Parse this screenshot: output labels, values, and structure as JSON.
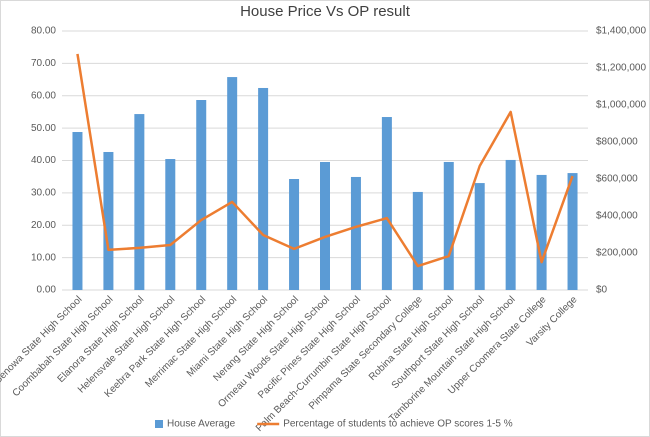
{
  "chart_data": {
    "type": "bar-line",
    "title": "House Price Vs OP result",
    "categories": [
      "Benowa State High School",
      "Coombabah State High School",
      "Elanora State High School",
      "Helensvale State High School",
      "Keebra Park State High School",
      "Merrimac State High School",
      "Miami State High School",
      "Nerang State High School",
      "Ormeau Woods State High School",
      "Pacific Pines State High School",
      "Palm Beach-Currumbin State High School",
      "Pimpama State Secondary College",
      "Robina State High School",
      "Southport State High School",
      "Tamborine Mountain State High School",
      "Upper Coomera State College",
      "Varsity College"
    ],
    "series": [
      {
        "name": "House Average",
        "type": "bar",
        "axis": "y2",
        "color": "#5b9bd5",
        "values": [
          854000,
          746000,
          951000,
          708000,
          1027000,
          1151000,
          1092000,
          600000,
          692000,
          611000,
          935000,
          530000,
          692000,
          578000,
          703000,
          622000,
          632000
        ]
      },
      {
        "name": "Percentage of students to achieve OP scores 1-5 %",
        "type": "line",
        "color": "#ed7d31",
        "values": [
          72.9,
          12.4,
          13.0,
          13.9,
          21.6,
          27.2,
          17.0,
          12.7,
          16.4,
          19.5,
          22.2,
          7.4,
          10.5,
          38.3,
          55.0,
          8.6,
          35.2
        ]
      }
    ],
    "ylim": [
      0,
      80
    ],
    "yticks": [
      {
        "value": 0,
        "label": "0.00"
      },
      {
        "value": 10,
        "label": "10.00"
      },
      {
        "value": 20,
        "label": "20.00"
      },
      {
        "value": 30,
        "label": "30.00"
      },
      {
        "value": 40,
        "label": "40.00"
      },
      {
        "value": 50,
        "label": "50.00"
      },
      {
        "value": 60,
        "label": "60.00"
      },
      {
        "value": 70,
        "label": "70.00"
      },
      {
        "value": 80,
        "label": "80.00"
      }
    ],
    "y2lim": [
      0,
      1400000
    ],
    "y2ticks": [
      {
        "value": 0,
        "label": "$0"
      },
      {
        "value": 200000,
        "label": "$200,000"
      },
      {
        "value": 400000,
        "label": "$400,000"
      },
      {
        "value": 600000,
        "label": "$600,000"
      },
      {
        "value": 800000,
        "label": "$800,000"
      },
      {
        "value": 1000000,
        "label": "$1,000,000"
      },
      {
        "value": 1200000,
        "label": "$1,200,000"
      },
      {
        "value": 1400000,
        "label": "$1,400,000"
      }
    ],
    "grid": true
  }
}
